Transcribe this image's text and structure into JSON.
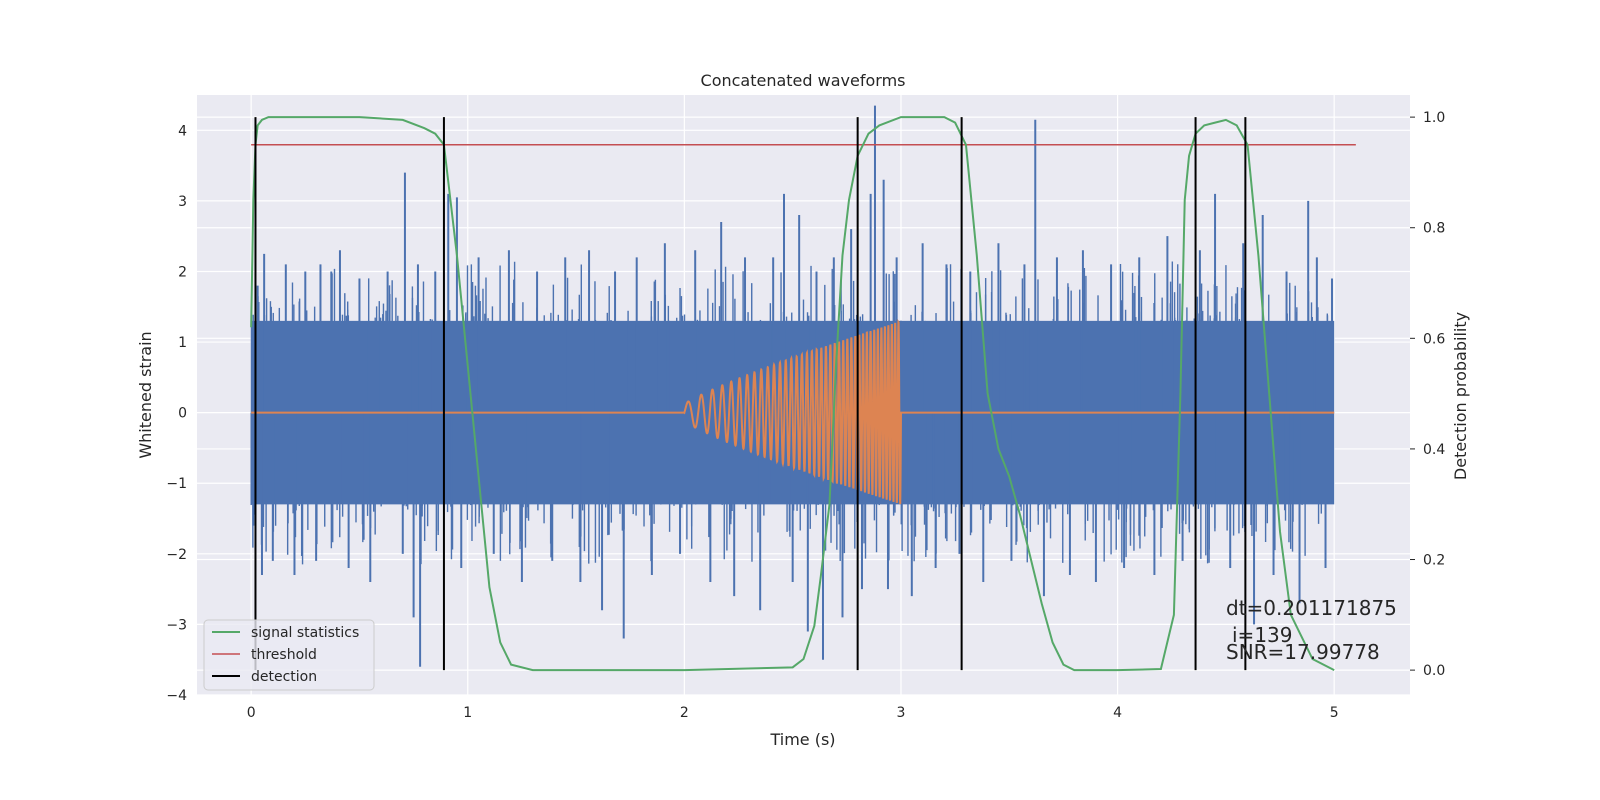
{
  "chart_data": {
    "type": "line",
    "title": "Concatenated waveforms",
    "xlabel": "Time (s)",
    "ylabel": "Whitened strain",
    "y2label": "Detection probability",
    "xlim": [
      -0.25,
      5.35
    ],
    "ylim": [
      -4,
      4.5
    ],
    "y2lim": [
      -0.045,
      1.04
    ],
    "x_ticks": [
      "0",
      "1",
      "2",
      "3",
      "4",
      "5"
    ],
    "y_ticks": [
      "4",
      "3",
      "2",
      "1",
      "0",
      "−1",
      "−2",
      "−3",
      "−4"
    ],
    "y2_ticks": [
      "1.0",
      "0.8",
      "0.6",
      "0.4",
      "0.2",
      "0.0"
    ],
    "grid": true,
    "legend_position": "lower-left",
    "colors": {
      "strain": "#4c72b0",
      "template": "#dd8452",
      "signal_statistics": "#55a868",
      "threshold": "#c44e52",
      "detection": "#000000",
      "background": "#eaeaf2"
    },
    "series": [
      {
        "name": "signal statistics",
        "axis": "right",
        "x": [
          0.0,
          0.01,
          0.02,
          0.03,
          0.05,
          0.08,
          0.15,
          0.3,
          0.5,
          0.7,
          0.8,
          0.85,
          0.89,
          0.92,
          0.95,
          1.0,
          1.05,
          1.1,
          1.15,
          1.2,
          1.3,
          1.5,
          2.0,
          2.5,
          2.55,
          2.6,
          2.63,
          2.67,
          2.7,
          2.73,
          2.76,
          2.8,
          2.85,
          2.9,
          3.0,
          3.1,
          3.2,
          3.25,
          3.3,
          3.35,
          3.4,
          3.45,
          3.5,
          3.55,
          3.6,
          3.65,
          3.7,
          3.75,
          3.8,
          4.0,
          4.2,
          4.26,
          4.29,
          4.31,
          4.33,
          4.36,
          4.4,
          4.45,
          4.5,
          4.55,
          4.6,
          4.65,
          4.7,
          4.75,
          4.8,
          4.9,
          5.0
        ],
        "values": [
          0.62,
          0.85,
          0.95,
          0.985,
          0.995,
          1.0,
          1.0,
          1.0,
          1.0,
          0.995,
          0.98,
          0.97,
          0.95,
          0.85,
          0.75,
          0.55,
          0.35,
          0.15,
          0.05,
          0.01,
          0.0,
          0.0,
          0.0,
          0.005,
          0.02,
          0.08,
          0.17,
          0.3,
          0.55,
          0.75,
          0.85,
          0.93,
          0.97,
          0.985,
          1.0,
          1.0,
          1.0,
          0.99,
          0.95,
          0.75,
          0.5,
          0.4,
          0.35,
          0.28,
          0.2,
          0.12,
          0.05,
          0.01,
          0.0,
          0.0,
          0.002,
          0.1,
          0.5,
          0.85,
          0.93,
          0.97,
          0.985,
          0.99,
          0.995,
          0.985,
          0.95,
          0.75,
          0.5,
          0.25,
          0.1,
          0.02,
          0.0
        ]
      },
      {
        "name": "threshold",
        "axis": "right",
        "x": [
          0.0,
          5.1
        ],
        "values": [
          0.95,
          0.95
        ]
      }
    ],
    "detections_x": [
      0.02,
      0.89,
      2.8,
      3.28,
      4.36,
      4.59
    ],
    "strain": {
      "x_range": [
        0.0,
        5.0
      ],
      "band": [
        -1.3,
        1.3
      ],
      "spikes": [
        {
          "x": 0.01,
          "y": -1.6
        },
        {
          "x": 0.03,
          "y": 1.8
        },
        {
          "x": 0.05,
          "y": -2.3
        },
        {
          "x": 0.06,
          "y": 2.25
        },
        {
          "x": 0.1,
          "y": -2.1
        },
        {
          "x": 0.16,
          "y": 2.1
        },
        {
          "x": 0.2,
          "y": -2.3
        },
        {
          "x": 0.25,
          "y": 2.0
        },
        {
          "x": 0.3,
          "y": -2.1
        },
        {
          "x": 0.32,
          "y": 2.1
        },
        {
          "x": 0.37,
          "y": 2.0
        },
        {
          "x": 0.41,
          "y": 2.3
        },
        {
          "x": 0.45,
          "y": -2.2
        },
        {
          "x": 0.5,
          "y": 1.9
        },
        {
          "x": 0.55,
          "y": -2.4
        },
        {
          "x": 0.63,
          "y": 2.0
        },
        {
          "x": 0.7,
          "y": -2.0
        },
        {
          "x": 0.71,
          "y": 3.4
        },
        {
          "x": 0.75,
          "y": -2.9
        },
        {
          "x": 0.77,
          "y": 2.1
        },
        {
          "x": 0.78,
          "y": -3.6
        },
        {
          "x": 0.85,
          "y": 2.0
        },
        {
          "x": 0.91,
          "y": 3.1
        },
        {
          "x": 0.95,
          "y": 3.05
        },
        {
          "x": 0.97,
          "y": -2.2
        },
        {
          "x": 1.05,
          "y": 2.2
        },
        {
          "x": 1.12,
          "y": -2.0
        },
        {
          "x": 1.19,
          "y": 2.3
        },
        {
          "x": 1.25,
          "y": -2.4
        },
        {
          "x": 1.32,
          "y": 2.0
        },
        {
          "x": 1.39,
          "y": -2.1
        },
        {
          "x": 1.45,
          "y": 2.2
        },
        {
          "x": 1.52,
          "y": -2.4
        },
        {
          "x": 1.56,
          "y": 2.3
        },
        {
          "x": 1.62,
          "y": -2.8
        },
        {
          "x": 1.68,
          "y": 2.0
        },
        {
          "x": 1.72,
          "y": -3.2
        },
        {
          "x": 1.78,
          "y": 2.2
        },
        {
          "x": 1.85,
          "y": -2.3
        },
        {
          "x": 1.91,
          "y": 2.4
        },
        {
          "x": 1.98,
          "y": -2.0
        },
        {
          "x": 2.05,
          "y": 2.3
        },
        {
          "x": 2.12,
          "y": -2.4
        },
        {
          "x": 2.17,
          "y": 2.7
        },
        {
          "x": 2.23,
          "y": -2.6
        },
        {
          "x": 2.28,
          "y": 2.2
        },
        {
          "x": 2.35,
          "y": -2.8
        },
        {
          "x": 2.41,
          "y": 2.2
        },
        {
          "x": 2.46,
          "y": 3.1
        },
        {
          "x": 2.5,
          "y": -2.4
        },
        {
          "x": 2.53,
          "y": 2.8
        },
        {
          "x": 2.57,
          "y": -3.1
        },
        {
          "x": 2.61,
          "y": 2.0
        },
        {
          "x": 2.64,
          "y": -3.5
        },
        {
          "x": 2.69,
          "y": 2.2
        },
        {
          "x": 2.73,
          "y": -2.9
        },
        {
          "x": 2.77,
          "y": 2.6
        },
        {
          "x": 2.82,
          "y": -2.5
        },
        {
          "x": 2.86,
          "y": 3.1
        },
        {
          "x": 2.88,
          "y": 4.35
        },
        {
          "x": 2.92,
          "y": 3.3
        },
        {
          "x": 2.94,
          "y": -2.5
        },
        {
          "x": 2.98,
          "y": 2.2
        },
        {
          "x": 3.05,
          "y": -2.6
        },
        {
          "x": 3.1,
          "y": 2.4
        },
        {
          "x": 3.16,
          "y": -2.2
        },
        {
          "x": 3.21,
          "y": 2.1
        },
        {
          "x": 3.27,
          "y": -2.0
        },
        {
          "x": 3.32,
          "y": 2.0
        },
        {
          "x": 3.38,
          "y": -2.4
        },
        {
          "x": 3.45,
          "y": 2.4
        },
        {
          "x": 3.51,
          "y": -2.1
        },
        {
          "x": 3.57,
          "y": 2.1
        },
        {
          "x": 3.62,
          "y": 4.15
        },
        {
          "x": 3.66,
          "y": -2.6
        },
        {
          "x": 3.72,
          "y": 2.2
        },
        {
          "x": 3.78,
          "y": -2.3
        },
        {
          "x": 3.84,
          "y": 2.3
        },
        {
          "x": 3.9,
          "y": -2.4
        },
        {
          "x": 3.97,
          "y": 2.1
        },
        {
          "x": 4.03,
          "y": -2.2
        },
        {
          "x": 4.1,
          "y": 2.2
        },
        {
          "x": 4.17,
          "y": -2.3
        },
        {
          "x": 4.23,
          "y": 2.5
        },
        {
          "x": 4.3,
          "y": -2.1
        },
        {
          "x": 4.38,
          "y": 2.3
        },
        {
          "x": 4.45,
          "y": 3.1
        },
        {
          "x": 4.52,
          "y": -2.2
        },
        {
          "x": 4.58,
          "y": 2.4
        },
        {
          "x": 4.63,
          "y": -3.0
        },
        {
          "x": 4.67,
          "y": 2.8
        },
        {
          "x": 4.72,
          "y": -2.3
        },
        {
          "x": 4.78,
          "y": 2.0
        },
        {
          "x": 4.84,
          "y": -2.7
        },
        {
          "x": 4.88,
          "y": 3.0
        },
        {
          "x": 4.92,
          "y": 2.2
        },
        {
          "x": 4.96,
          "y": -2.2
        },
        {
          "x": 4.99,
          "y": 1.9
        }
      ]
    },
    "template": {
      "x_range": [
        0.0,
        5.0
      ],
      "chirp_x_range": [
        2.0,
        3.0
      ],
      "amplitude_range": [
        0.12,
        1.3
      ]
    }
  },
  "legend": {
    "signal_statistics": "signal statistics",
    "threshold": "threshold",
    "detection": "detection"
  },
  "annotations": {
    "dt": "dt=0.201171875",
    "i": "i=139",
    "snr": "SNR=17.99778"
  }
}
